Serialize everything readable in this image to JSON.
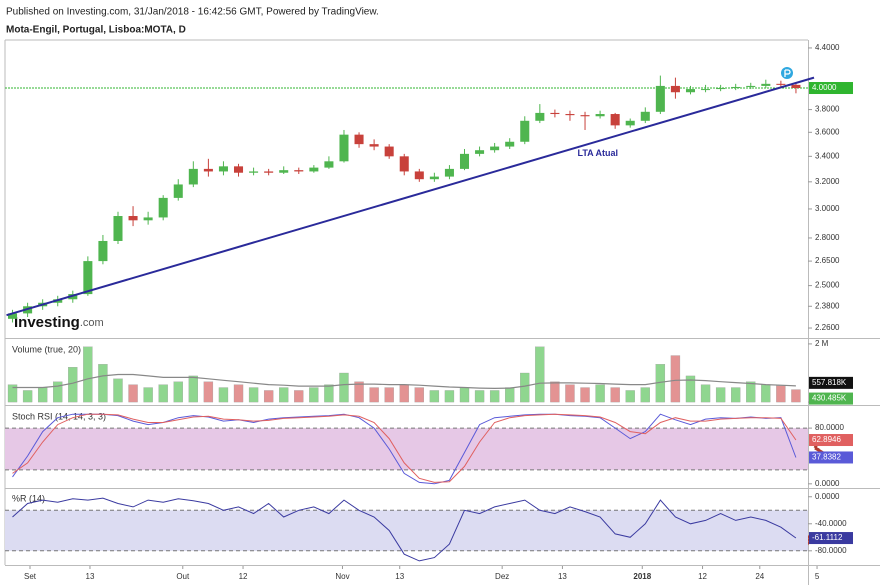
{
  "header": "Published on Investing.com, 31/Jan/2018 - 16:42:56 GMT, Powered by TradingView.",
  "watermark": {
    "brand": "Investing",
    "suffix": ".com"
  },
  "chart_data": [
    {
      "type": "candlestick",
      "title": "Mota-Engil, Portugal, Lisboa:MOTA, D",
      "log": true,
      "up_color": "#4fb54f",
      "down_color": "#c8413b",
      "open": [
        2.31,
        2.34,
        2.38,
        2.4,
        2.42,
        2.45,
        2.65,
        2.78,
        2.95,
        2.92,
        2.94,
        3.08,
        3.18,
        3.3,
        3.28,
        3.32,
        3.27,
        3.28,
        3.27,
        3.29,
        3.28,
        3.31,
        3.36,
        3.58,
        3.5,
        3.48,
        3.4,
        3.28,
        3.22,
        3.24,
        3.3,
        3.42,
        3.45,
        3.48,
        3.52,
        3.7,
        3.77,
        3.76,
        3.75,
        3.74,
        3.76,
        3.66,
        3.7,
        3.78,
        4.02,
        3.96,
        3.99,
        3.99,
        4.0,
        4.01,
        4.02,
        4.04,
        4.03
      ],
      "high": [
        2.36,
        2.4,
        2.42,
        2.44,
        2.47,
        2.68,
        2.82,
        2.98,
        3.02,
        2.98,
        3.1,
        3.22,
        3.36,
        3.38,
        3.36,
        3.34,
        3.31,
        3.3,
        3.32,
        3.31,
        3.33,
        3.4,
        3.62,
        3.6,
        3.54,
        3.5,
        3.42,
        3.3,
        3.27,
        3.33,
        3.46,
        3.48,
        3.51,
        3.55,
        3.74,
        3.85,
        3.8,
        3.79,
        3.78,
        3.79,
        3.77,
        3.72,
        3.82,
        4.12,
        4.1,
        4.02,
        4.03,
        4.03,
        4.04,
        4.05,
        4.08,
        4.07,
        4.05
      ],
      "low": [
        2.29,
        2.32,
        2.36,
        2.38,
        2.4,
        2.44,
        2.63,
        2.76,
        2.88,
        2.89,
        2.92,
        3.06,
        3.16,
        3.24,
        3.25,
        3.24,
        3.25,
        3.25,
        3.26,
        3.26,
        3.27,
        3.3,
        3.35,
        3.47,
        3.45,
        3.38,
        3.25,
        3.2,
        3.2,
        3.22,
        3.29,
        3.4,
        3.43,
        3.46,
        3.5,
        3.68,
        3.73,
        3.7,
        3.62,
        3.72,
        3.63,
        3.64,
        3.68,
        3.76,
        3.9,
        3.94,
        3.96,
        3.97,
        3.98,
        3.99,
        4.0,
        4.0,
        3.95
      ],
      "close": [
        2.34,
        2.38,
        2.4,
        2.42,
        2.45,
        2.65,
        2.78,
        2.95,
        2.92,
        2.94,
        3.08,
        3.18,
        3.3,
        3.28,
        3.32,
        3.27,
        3.28,
        3.27,
        3.29,
        3.28,
        3.31,
        3.36,
        3.58,
        3.5,
        3.48,
        3.4,
        3.28,
        3.22,
        3.24,
        3.3,
        3.42,
        3.45,
        3.48,
        3.52,
        3.7,
        3.77,
        3.76,
        3.75,
        3.74,
        3.76,
        3.66,
        3.7,
        3.78,
        4.02,
        3.96,
        3.99,
        3.99,
        4.0,
        4.01,
        4.02,
        4.04,
        4.03,
        4.0
      ],
      "ylim": [
        2.207,
        4.484
      ],
      "yticks": [
        {
          "value": 4.4,
          "label": "4.4000"
        },
        {
          "value": 3.8,
          "label": "3.8000"
        },
        {
          "value": 3.6,
          "label": "3.6000"
        },
        {
          "value": 3.4,
          "label": "3.4000"
        },
        {
          "value": 3.2,
          "label": "3.2000"
        },
        {
          "value": 3.0,
          "label": "3.0000"
        },
        {
          "value": 2.8,
          "label": "2.8000"
        },
        {
          "value": 2.65,
          "label": "2.6500"
        },
        {
          "value": 2.5,
          "label": "2.5000"
        },
        {
          "value": 2.38,
          "label": "2.3800"
        },
        {
          "value": 2.26,
          "label": "2.2600"
        }
      ],
      "last_price": {
        "value": 4.0,
        "label": "4.0000",
        "color": "#2fb52f"
      },
      "trendline": {
        "x": [
          -0.4,
          53.2
        ],
        "y": [
          2.33,
          4.1
        ],
        "color": "#2a2a9a",
        "label": "LTA Atual",
        "label_x": 37.5,
        "label_y": 3.42
      }
    },
    {
      "type": "bar",
      "title": "Volume (true, 20)",
      "up_color": "#8fd68f",
      "down_color": "#e39393",
      "values": [
        0.6,
        0.4,
        0.5,
        0.7,
        1.2,
        1.9,
        1.3,
        0.8,
        0.6,
        0.5,
        0.6,
        0.7,
        0.9,
        0.7,
        0.5,
        0.6,
        0.5,
        0.4,
        0.5,
        0.4,
        0.5,
        0.6,
        1.0,
        0.7,
        0.5,
        0.5,
        0.6,
        0.5,
        0.4,
        0.4,
        0.5,
        0.4,
        0.4,
        0.5,
        1.0,
        1.9,
        0.7,
        0.6,
        0.5,
        0.6,
        0.5,
        0.4,
        0.5,
        1.3,
        1.6,
        0.9,
        0.6,
        0.5,
        0.5,
        0.7,
        0.6,
        0.56,
        0.430485
      ],
      "last_label": "430.485K",
      "ma": {
        "color": "#888888",
        "last_label": "557.818K",
        "values": [
          0.5,
          0.5,
          0.5,
          0.55,
          0.65,
          0.8,
          0.9,
          0.95,
          0.95,
          0.9,
          0.85,
          0.85,
          0.85,
          0.8,
          0.75,
          0.7,
          0.65,
          0.6,
          0.58,
          0.55,
          0.55,
          0.55,
          0.6,
          0.62,
          0.62,
          0.6,
          0.6,
          0.58,
          0.55,
          0.52,
          0.5,
          0.48,
          0.47,
          0.48,
          0.55,
          0.65,
          0.66,
          0.66,
          0.65,
          0.64,
          0.62,
          0.6,
          0.6,
          0.68,
          0.75,
          0.76,
          0.74,
          0.7,
          0.67,
          0.64,
          0.6,
          0.58,
          0.557818
        ]
      },
      "ylim": [
        -0.1,
        2.1
      ],
      "yticks": [
        {
          "value": 2,
          "label": "2 M"
        },
        0
      ]
    },
    {
      "type": "line",
      "title": "Stoch RSI (14, 14, 3, 3)",
      "band": [
        20,
        80
      ],
      "band_color": "#e6c8e6",
      "series": [
        {
          "color": "#5a5ad8",
          "last_label": "37.8382",
          "values": [
            10,
            40,
            75,
            95,
            100,
            100,
            100,
            98,
            90,
            85,
            88,
            95,
            98,
            96,
            90,
            92,
            88,
            93,
            95,
            96,
            97,
            98,
            100,
            95,
            80,
            50,
            15,
            2,
            0,
            5,
            45,
            85,
            95,
            97,
            99,
            100,
            100,
            98,
            97,
            95,
            80,
            65,
            75,
            100,
            92,
            85,
            93,
            95,
            94,
            96,
            94,
            95,
            37.8382
          ]
        },
        {
          "color": "#e06060",
          "last_label": "62.8946",
          "values": [
            15,
            30,
            60,
            85,
            95,
            100,
            100,
            99,
            93,
            88,
            88,
            92,
            96,
            97,
            93,
            92,
            90,
            91,
            94,
            95,
            96,
            97,
            99,
            97,
            88,
            65,
            30,
            8,
            2,
            3,
            25,
            60,
            88,
            95,
            98,
            99,
            100,
            99,
            98,
            96,
            88,
            75,
            72,
            88,
            95,
            90,
            90,
            93,
            94,
            95,
            95,
            94,
            62.8946
          ]
        }
      ],
      "ylim": [
        -6,
        106
      ],
      "yticks": [
        {
          "value": 80,
          "label": "80.0000"
        },
        {
          "value": 0,
          "label": "0.0000"
        }
      ]
    },
    {
      "type": "line",
      "title": "%R (14)",
      "band": [
        -80,
        -20
      ],
      "band_color": "#dcdcf2",
      "series": [
        {
          "color": "#3a3aa0",
          "last_label": "-61.1112",
          "values": [
            -30,
            -10,
            -5,
            -8,
            -3,
            -5,
            -2,
            -10,
            -15,
            -5,
            -8,
            -3,
            -6,
            -10,
            -20,
            -15,
            -25,
            -10,
            -30,
            -20,
            -15,
            -25,
            -5,
            -20,
            -30,
            -50,
            -85,
            -95,
            -90,
            -70,
            -20,
            -25,
            -15,
            -10,
            -5,
            -20,
            -25,
            -15,
            -22,
            -30,
            -55,
            -60,
            -40,
            -5,
            -30,
            -40,
            -35,
            -25,
            -35,
            -30,
            -35,
            -45,
            -61.1112
          ]
        }
      ],
      "ylim": [
        -101,
        10
      ],
      "yticks": [
        {
          "value": 0,
          "label": "0.0000"
        },
        {
          "value": -40,
          "label": "-40.0000"
        },
        {
          "value": -80,
          "label": "-80.0000"
        }
      ],
      "xlim": [
        -0.5,
        52.8
      ],
      "xticks": [
        {
          "value": 1.16,
          "label": "Set"
        },
        {
          "value": 5.14,
          "label": "13"
        },
        {
          "value": 11.3,
          "label": "Out"
        },
        {
          "value": 15.3,
          "label": "12"
        },
        {
          "value": 21.9,
          "label": "Nov"
        },
        {
          "value": 25.7,
          "label": "13"
        },
        {
          "value": 32.5,
          "label": "Dez"
        },
        {
          "value": 36.5,
          "label": "13"
        },
        {
          "value": 41.8,
          "label": "2018"
        },
        {
          "value": 45.8,
          "label": "12"
        },
        {
          "value": 49.6,
          "label": "24"
        },
        {
          "value": 53.4,
          "label": "5"
        }
      ]
    }
  ]
}
